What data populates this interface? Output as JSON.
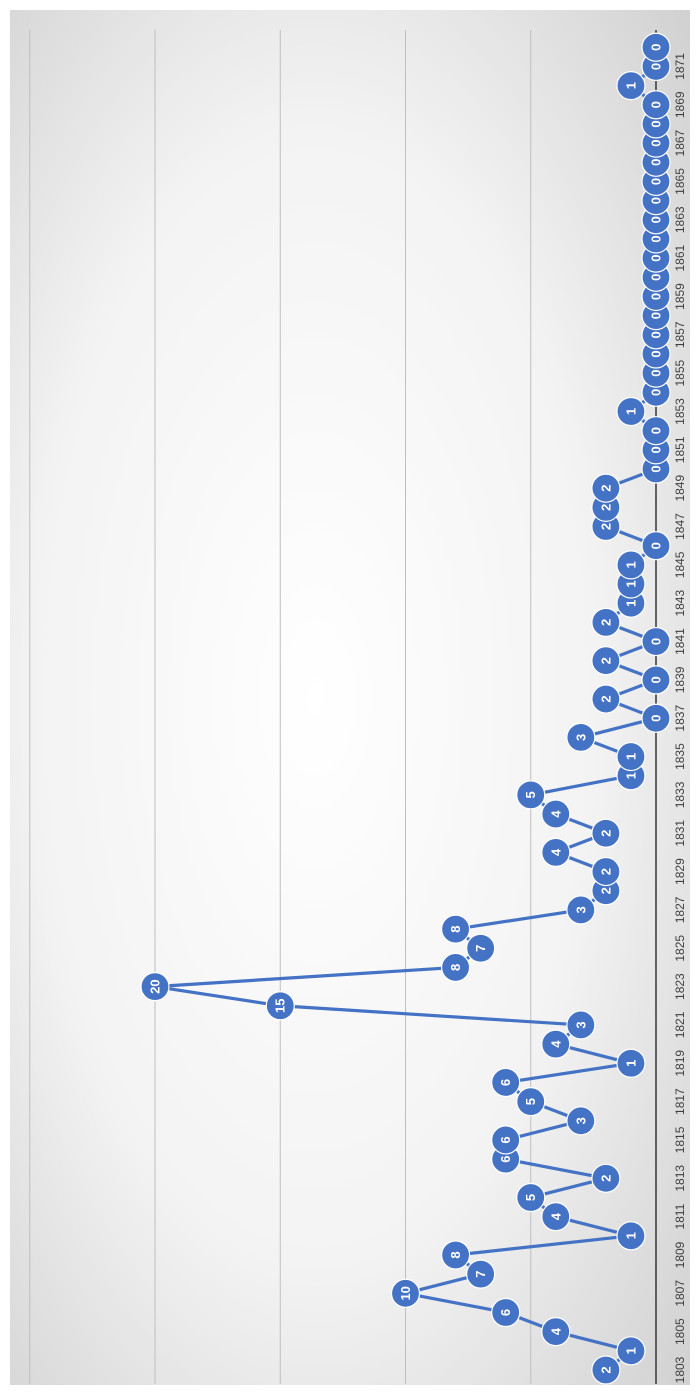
{
  "chart_data": {
    "type": "line",
    "orientation": "rotated-90-clockwise",
    "x": [
      1803,
      1804,
      1805,
      1806,
      1807,
      1808,
      1809,
      1810,
      1811,
      1812,
      1813,
      1814,
      1815,
      1816,
      1817,
      1818,
      1819,
      1820,
      1821,
      1822,
      1823,
      1824,
      1825,
      1826,
      1827,
      1828,
      1829,
      1830,
      1831,
      1832,
      1833,
      1834,
      1835,
      1836,
      1837,
      1838,
      1839,
      1840,
      1841,
      1842,
      1843,
      1844,
      1845,
      1846,
      1847,
      1848,
      1849,
      1850,
      1851,
      1852,
      1853,
      1854,
      1855,
      1856,
      1857,
      1858,
      1859,
      1860,
      1861,
      1862,
      1863,
      1864,
      1865,
      1866,
      1867,
      1868,
      1869,
      1870,
      1871,
      1872
    ],
    "x_tick_labels": [
      "1803",
      "1805",
      "1807",
      "1809",
      "1811",
      "1813",
      "1815",
      "1817",
      "1819",
      "1821",
      "1823",
      "1825",
      "1827",
      "1829",
      "1831",
      "1833",
      "1835",
      "1837",
      "1839",
      "1841",
      "1843",
      "1845",
      "1847",
      "1849",
      "1851",
      "1853",
      "1855",
      "1857",
      "1859",
      "1861",
      "1863",
      "1865",
      "1867",
      "1869",
      "1871"
    ],
    "series": [
      {
        "values": [
          2,
          1,
          4,
          6,
          10,
          7,
          8,
          1,
          4,
          5,
          2,
          6,
          6,
          3,
          5,
          6,
          1,
          4,
          3,
          15,
          20,
          8,
          7,
          8,
          3,
          2,
          2,
          4,
          2,
          4,
          5,
          1,
          1,
          3,
          0,
          2,
          0,
          2,
          0,
          2,
          1,
          1,
          1,
          0,
          2,
          2,
          2,
          0,
          0,
          0,
          1,
          0,
          0,
          0,
          0,
          0,
          0,
          0,
          0,
          0,
          0,
          0,
          0,
          0,
          0,
          0,
          0,
          1,
          0,
          0
        ],
        "color": "#4472C4"
      }
    ],
    "ylim": [
      0,
      25
    ],
    "grid": true,
    "title": "",
    "xlabel": "",
    "ylabel": "",
    "colors": {
      "series": "#4472C4",
      "label_text": "#ffffff",
      "tick_text": "#404040",
      "gridline": "#bfbfbf",
      "axis": "#404040",
      "background_center": "#ffffff",
      "background_edge": "#d0d0d0"
    }
  }
}
